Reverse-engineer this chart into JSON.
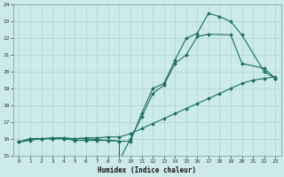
{
  "xlabel": "Humidex (Indice chaleur)",
  "ylabel": "",
  "bg_color": "#cceaea",
  "grid_color": "#aad4d4",
  "line_color": "#1a6e62",
  "xlim": [
    -0.5,
    23.5
  ],
  "ylim": [
    15,
    24
  ],
  "xticks": [
    0,
    1,
    2,
    3,
    4,
    5,
    6,
    7,
    8,
    9,
    10,
    11,
    12,
    13,
    14,
    15,
    16,
    17,
    18,
    19,
    20,
    21,
    22,
    23
  ],
  "yticks": [
    15,
    16,
    17,
    18,
    19,
    20,
    21,
    22,
    23,
    24
  ],
  "line1_x": [
    0,
    1,
    2,
    3,
    4,
    5,
    6,
    7,
    8,
    9,
    9,
    10,
    11,
    12,
    13,
    14,
    15,
    16,
    17,
    19,
    20,
    22,
    23
  ],
  "line1_y": [
    15.8,
    16.0,
    16.0,
    16.0,
    16.0,
    15.9,
    15.9,
    15.9,
    15.9,
    15.85,
    14.7,
    16.0,
    17.3,
    18.7,
    19.2,
    20.5,
    21.0,
    22.1,
    22.25,
    22.2,
    20.5,
    20.2,
    19.6
  ],
  "line2_x": [
    0,
    1,
    2,
    3,
    4,
    5,
    6,
    7,
    8,
    9,
    10,
    11,
    12,
    13,
    14,
    15,
    16,
    17,
    18,
    19,
    20,
    21,
    22,
    23
  ],
  "line2_y": [
    15.8,
    15.9,
    16.0,
    16.0,
    16.0,
    16.0,
    16.05,
    16.05,
    16.1,
    16.1,
    16.3,
    16.6,
    16.9,
    17.2,
    17.5,
    17.8,
    18.1,
    18.4,
    18.7,
    19.0,
    19.3,
    19.5,
    19.6,
    19.7
  ],
  "line3_x": [
    0,
    1,
    2,
    3,
    4,
    5,
    6,
    7,
    8,
    9,
    10,
    11,
    12,
    13,
    14,
    15,
    16,
    17,
    18,
    19,
    20,
    22,
    23
  ],
  "line3_y": [
    15.8,
    16.0,
    16.0,
    16.05,
    16.05,
    16.0,
    16.0,
    15.95,
    15.9,
    15.85,
    15.85,
    17.5,
    19.0,
    19.3,
    20.7,
    22.0,
    22.3,
    23.5,
    23.3,
    23.0,
    22.2,
    20.0,
    19.6
  ],
  "marker": "D",
  "markersize": 2.0,
  "linewidth": 0.8
}
